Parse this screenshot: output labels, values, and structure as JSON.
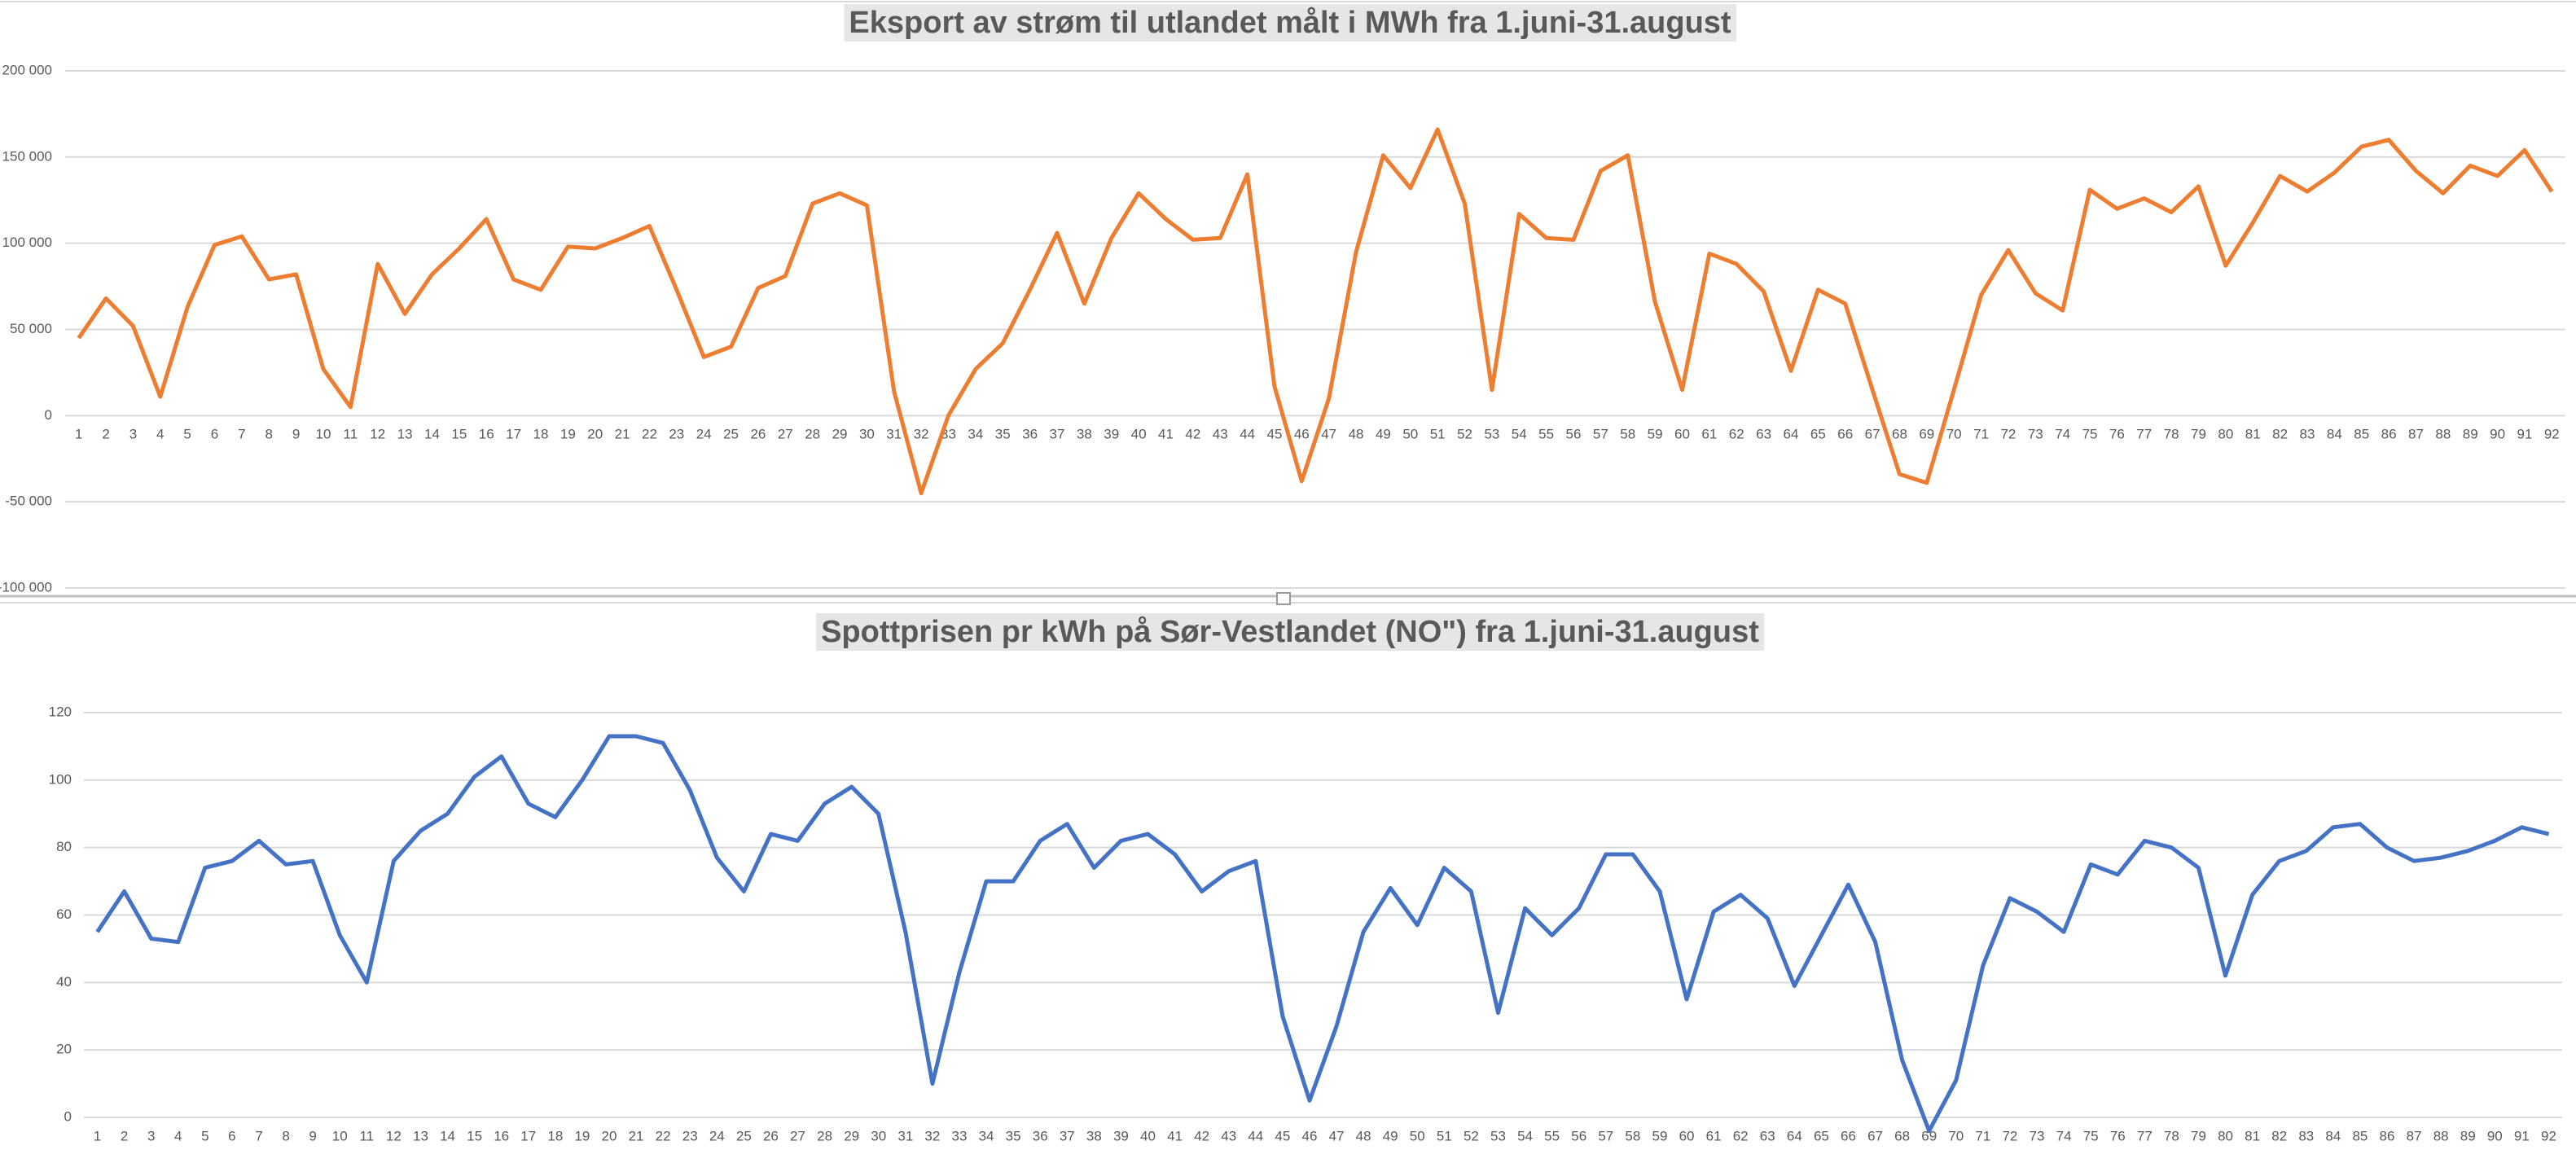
{
  "chart_data": [
    {
      "type": "line",
      "title": "Eksport av strøm til utlandet målt i MWh fra 1.juni-31.august",
      "categories": [
        1,
        2,
        3,
        4,
        5,
        6,
        7,
        8,
        9,
        10,
        11,
        12,
        13,
        14,
        15,
        16,
        17,
        18,
        19,
        20,
        21,
        22,
        23,
        24,
        25,
        26,
        27,
        28,
        29,
        30,
        31,
        32,
        33,
        34,
        35,
        36,
        37,
        38,
        39,
        40,
        41,
        42,
        43,
        44,
        45,
        46,
        47,
        48,
        49,
        50,
        51,
        52,
        53,
        54,
        55,
        56,
        57,
        58,
        59,
        60,
        61,
        62,
        63,
        64,
        65,
        66,
        67,
        68,
        69,
        70,
        71,
        72,
        73,
        74,
        75,
        76,
        77,
        78,
        79,
        80,
        81,
        82,
        83,
        84,
        85,
        86,
        87,
        88,
        89,
        90,
        91,
        92
      ],
      "values": [
        45000,
        68000,
        52000,
        11000,
        63000,
        99000,
        104000,
        79000,
        82000,
        27000,
        5000,
        88000,
        59000,
        82000,
        97000,
        114000,
        79000,
        73000,
        98000,
        97000,
        103000,
        110000,
        73000,
        34000,
        40000,
        74000,
        81000,
        123000,
        129000,
        122000,
        14000,
        -45000,
        0,
        27000,
        42000,
        73000,
        106000,
        65000,
        103000,
        129000,
        114000,
        102000,
        103000,
        140000,
        17000,
        -38000,
        10000,
        95000,
        151000,
        132000,
        166000,
        123000,
        15000,
        117000,
        103000,
        102000,
        142000,
        151000,
        66000,
        15000,
        94000,
        88000,
        72000,
        26000,
        73000,
        65000,
        15000,
        -34000,
        -39000,
        15000,
        70000,
        96000,
        71000,
        61000,
        131000,
        120000,
        126000,
        118000,
        133000,
        87000,
        112000,
        139000,
        130000,
        141000,
        156000,
        160000,
        142000,
        129000,
        145000,
        139000,
        154000,
        130000
      ],
      "color": "#ed7d31",
      "ylim": [
        -100000,
        200000
      ],
      "yticks": [
        {
          "value": -100000,
          "label": "-100 000"
        },
        {
          "value": -50000,
          "label": "-50 000"
        },
        0,
        {
          "value": 50000,
          "label": "50 000"
        },
        {
          "value": 100000,
          "label": "100 000"
        },
        {
          "value": 150000,
          "label": "150 000"
        },
        {
          "value": 200000,
          "label": "200 000"
        }
      ],
      "grid": true
    },
    {
      "type": "line",
      "title": "Spottprisen pr kWh på Sør-Vestlandet (NO\") fra 1.juni-31.august",
      "categories": [
        1,
        2,
        3,
        4,
        5,
        6,
        7,
        8,
        9,
        10,
        11,
        12,
        13,
        14,
        15,
        16,
        17,
        18,
        19,
        20,
        21,
        22,
        23,
        24,
        25,
        26,
        27,
        28,
        29,
        30,
        31,
        32,
        33,
        34,
        35,
        36,
        37,
        38,
        39,
        40,
        41,
        42,
        43,
        44,
        45,
        46,
        47,
        48,
        49,
        50,
        51,
        52,
        53,
        54,
        55,
        56,
        57,
        58,
        59,
        60,
        61,
        62,
        63,
        64,
        65,
        66,
        67,
        68,
        69,
        70,
        71,
        72,
        73,
        74,
        75,
        76,
        77,
        78,
        79,
        80,
        81,
        82,
        83,
        84,
        85,
        86,
        87,
        88,
        89,
        90,
        91,
        92
      ],
      "values": [
        55,
        67,
        53,
        52,
        74,
        76,
        82,
        75,
        76,
        54,
        40,
        76,
        85,
        90,
        101,
        107,
        93,
        89,
        100,
        113,
        113,
        111,
        97,
        77,
        67,
        84,
        82,
        93,
        98,
        90,
        55,
        10,
        43,
        70,
        70,
        82,
        87,
        74,
        82,
        84,
        78,
        67,
        73,
        76,
        30,
        5,
        27,
        55,
        68,
        57,
        74,
        67,
        31,
        62,
        54,
        62,
        78,
        78,
        67,
        35,
        61,
        66,
        59,
        39,
        54,
        69,
        52,
        17,
        -4,
        11,
        45,
        65,
        61,
        55,
        75,
        72,
        82,
        80,
        74,
        42,
        66,
        76,
        79,
        86,
        87,
        80,
        76,
        77,
        79,
        82,
        86,
        84
      ],
      "color": "#4472c4",
      "ylim": [
        0,
        120
      ],
      "yticks": [
        0,
        20,
        40,
        60,
        80,
        100,
        120
      ],
      "grid": true
    }
  ]
}
